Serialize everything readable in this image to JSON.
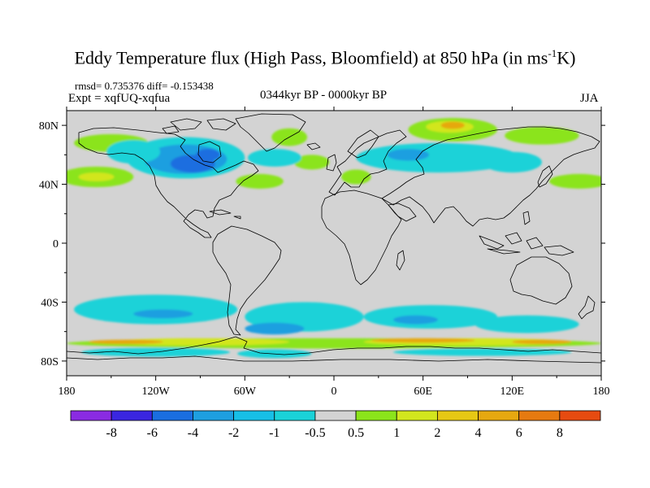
{
  "title": {
    "prefix": "Eddy Temperature flux (High Pass, Bloomfield) at 850 hPa (in ms",
    "superscript": "-1",
    "suffix": "K)"
  },
  "stats": "rmsd= 0.735376 diff= -0.153438",
  "experiment": "Expt = xqfUQ-xqfua",
  "period": "0344kyr BP - 0000kyr BP",
  "season": "JJA",
  "map": {
    "projection": "cylindrical-equidistant",
    "lon_range": [
      -180,
      180
    ],
    "lat_range": [
      -90,
      90
    ],
    "x_ticks": [
      {
        "lon": -180,
        "label": "180"
      },
      {
        "lon": -120,
        "label": "120W"
      },
      {
        "lon": -60,
        "label": "60W"
      },
      {
        "lon": 0,
        "label": "0"
      },
      {
        "lon": 60,
        "label": "60E"
      },
      {
        "lon": 120,
        "label": "120E"
      },
      {
        "lon": 180,
        "label": "180"
      }
    ],
    "y_ticks": [
      {
        "lat": 80,
        "label": "80N"
      },
      {
        "lat": 40,
        "label": "40N"
      },
      {
        "lat": 0,
        "label": "0"
      },
      {
        "lat": -40,
        "label": "40S"
      },
      {
        "lat": -80,
        "label": "80S"
      }
    ],
    "background_color": "#d3d3d3",
    "coastline_color": "#000000",
    "field_patches": [
      {
        "name": "arctic-russia",
        "lon": 80,
        "lat": 77,
        "rx": 30,
        "ry": 8,
        "color": "#8be41b"
      },
      {
        "name": "arctic-russia-core",
        "lon": 78,
        "lat": 79,
        "rx": 16,
        "ry": 4,
        "color": "#d2e61e"
      },
      {
        "name": "arctic-russia-max",
        "lon": 80,
        "lat": 80,
        "rx": 8,
        "ry": 2.5,
        "color": "#e6a810"
      },
      {
        "name": "siberia-green",
        "lon": 140,
        "lat": 73,
        "rx": 25,
        "ry": 6,
        "color": "#8be41b"
      },
      {
        "name": "alaska-green",
        "lon": -150,
        "lat": 68,
        "rx": 25,
        "ry": 6,
        "color": "#8be41b"
      },
      {
        "name": "greenland-green",
        "lon": -30,
        "lat": 72,
        "rx": 12,
        "ry": 6,
        "color": "#8be41b"
      },
      {
        "name": "n-atlantic-green",
        "lon": -15,
        "lat": 55,
        "rx": 12,
        "ry": 5,
        "color": "#8be41b"
      },
      {
        "name": "ne-pacific-green",
        "lon": -160,
        "lat": 45,
        "rx": 25,
        "ry": 7,
        "color": "#8be41b"
      },
      {
        "name": "ne-pacific-yellow",
        "lon": -160,
        "lat": 45,
        "rx": 12,
        "ry": 3,
        "color": "#d2e61e"
      },
      {
        "name": "nw-atlantic-green",
        "lon": -50,
        "lat": 42,
        "rx": 16,
        "ry": 5,
        "color": "#8be41b"
      },
      {
        "name": "n-pacific-west-green",
        "lon": 165,
        "lat": 42,
        "rx": 20,
        "ry": 5,
        "color": "#8be41b"
      },
      {
        "name": "europe-green",
        "lon": 15,
        "lat": 45,
        "rx": 10,
        "ry": 5,
        "color": "#8be41b"
      },
      {
        "name": "n-america-cyan",
        "lon": -100,
        "lat": 58,
        "rx": 40,
        "ry": 14,
        "color": "#1ad2d8"
      },
      {
        "name": "n-america-blue",
        "lon": -100,
        "lat": 57,
        "rx": 28,
        "ry": 10,
        "color": "#1e9fe0"
      },
      {
        "name": "n-america-deep",
        "lon": -95,
        "lat": 54,
        "rx": 15,
        "ry": 6,
        "color": "#1a6ee0"
      },
      {
        "name": "hudson-deep",
        "lon": -85,
        "lat": 60,
        "rx": 8,
        "ry": 4,
        "color": "#1a6ee0"
      },
      {
        "name": "canada-west-cyan",
        "lon": -135,
        "lat": 62,
        "rx": 18,
        "ry": 8,
        "color": "#1ad2d8"
      },
      {
        "name": "n-atlantic-cyan",
        "lon": -40,
        "lat": 58,
        "rx": 18,
        "ry": 6,
        "color": "#1ad2d8"
      },
      {
        "name": "eurasia-cyan",
        "lon": 70,
        "lat": 58,
        "rx": 55,
        "ry": 10,
        "color": "#1ad2d8"
      },
      {
        "name": "eurasia-blue",
        "lon": 50,
        "lat": 60,
        "rx": 14,
        "ry": 4,
        "color": "#1e9fe0"
      },
      {
        "name": "east-asia-cyan",
        "lon": 120,
        "lat": 55,
        "rx": 20,
        "ry": 7,
        "color": "#1ad2d8"
      },
      {
        "name": "s-pacific-cyan",
        "lon": -120,
        "lat": -45,
        "rx": 55,
        "ry": 10,
        "color": "#1ad2d8"
      },
      {
        "name": "s-pacific-blue",
        "lon": -115,
        "lat": -48,
        "rx": 20,
        "ry": 3,
        "color": "#1e9fe0"
      },
      {
        "name": "s-atlantic-cyan",
        "lon": -20,
        "lat": -50,
        "rx": 40,
        "ry": 10,
        "color": "#1ad2d8"
      },
      {
        "name": "s-atlantic-blue",
        "lon": -40,
        "lat": -58,
        "rx": 20,
        "ry": 4,
        "color": "#1e9fe0"
      },
      {
        "name": "s-indian-cyan",
        "lon": 65,
        "lat": -50,
        "rx": 45,
        "ry": 8,
        "color": "#1ad2d8"
      },
      {
        "name": "s-indian-blue",
        "lon": 55,
        "lat": -52,
        "rx": 15,
        "ry": 3,
        "color": "#1e9fe0"
      },
      {
        "name": "s-aus-cyan",
        "lon": 130,
        "lat": -55,
        "rx": 35,
        "ry": 6,
        "color": "#1ad2d8"
      },
      {
        "name": "antarctic-ring-green",
        "lon": 0,
        "lat": -68,
        "rx": 180,
        "ry": 3.5,
        "color": "#8be41b"
      },
      {
        "name": "antarctic-ring-yellow-w",
        "lon": -90,
        "lat": -67,
        "rx": 60,
        "ry": 2.5,
        "color": "#d2e61e"
      },
      {
        "name": "antarctic-ring-yellow-e",
        "lon": 90,
        "lat": -67,
        "rx": 70,
        "ry": 2.5,
        "color": "#d2e61e"
      },
      {
        "name": "antarctic-orange-w",
        "lon": -140,
        "lat": -67,
        "rx": 25,
        "ry": 1.5,
        "color": "#e6a810"
      },
      {
        "name": "antarctic-orange-e",
        "lon": 60,
        "lat": -66,
        "rx": 35,
        "ry": 1.5,
        "color": "#e6a810"
      },
      {
        "name": "antarctic-orange-e2",
        "lon": 140,
        "lat": -67,
        "rx": 20,
        "ry": 1.5,
        "color": "#e6a810"
      },
      {
        "name": "antarctic-coast-cyan-w",
        "lon": -120,
        "lat": -74,
        "rx": 50,
        "ry": 3,
        "color": "#1ad2d8"
      },
      {
        "name": "antarctic-coast-cyan-e",
        "lon": 100,
        "lat": -74,
        "rx": 60,
        "ry": 2.5,
        "color": "#1ad2d8"
      },
      {
        "name": "weddell-cyan",
        "lon": -40,
        "lat": -75,
        "rx": 25,
        "ry": 3,
        "color": "#1ad2d8"
      }
    ]
  },
  "colorbar": {
    "colors": [
      "#8a2be2",
      "#3a26e0",
      "#1a6ee0",
      "#1e9fe0",
      "#17bfe6",
      "#1ad2d8",
      "#d3d3d3",
      "#8be41b",
      "#d2e61e",
      "#e6c814",
      "#e6a810",
      "#e67a10",
      "#e64b10"
    ],
    "labels": [
      "-8",
      "-6",
      "-4",
      "-2",
      "-1",
      "-0.5",
      "0.5",
      "1",
      "2",
      "4",
      "6",
      "8"
    ]
  }
}
